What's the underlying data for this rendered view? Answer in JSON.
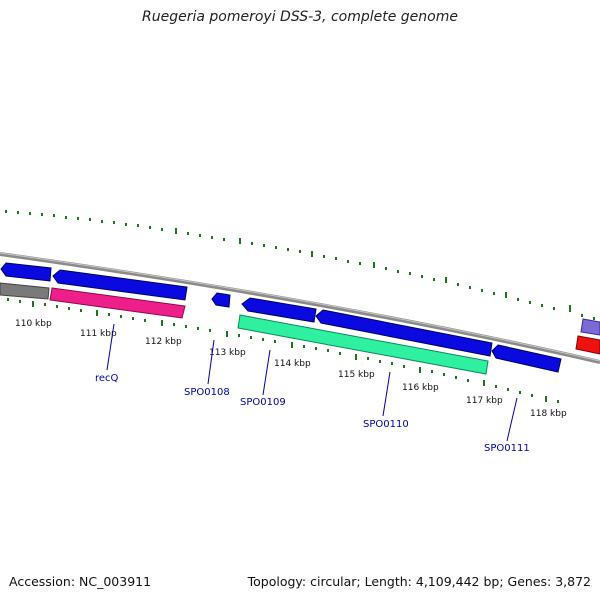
{
  "title": "Ruegeria pomeroyi DSS-3, complete genome",
  "footer": {
    "accession": "Accession: NC_003911",
    "summary": "Topology: circular; Length: 4,109,442 bp; Genes: 3,872"
  },
  "kbp_labels": [
    "110 kbp",
    "111 kbp",
    "112 kbp",
    "113 kbp",
    "114 kbp",
    "115 kbp",
    "116 kbp",
    "117 kbp",
    "118 kbp"
  ],
  "gene_labels": [
    "recQ",
    "SPO0108",
    "SPO0109",
    "SPO0110",
    "SPO0111"
  ],
  "colors": {
    "backbone": "#8a8a8a",
    "forward_gene": "#0a0ae0",
    "reverse_gene_pink": "#ee1f8a",
    "reverse_gene_green": "#2ff0a0",
    "grey_feature": "#7a7a7a",
    "red_feature": "#ee1111",
    "violet_feature": "#7b6ad6",
    "tick": "#1a7a1a",
    "label_line": "#0000aa"
  }
}
